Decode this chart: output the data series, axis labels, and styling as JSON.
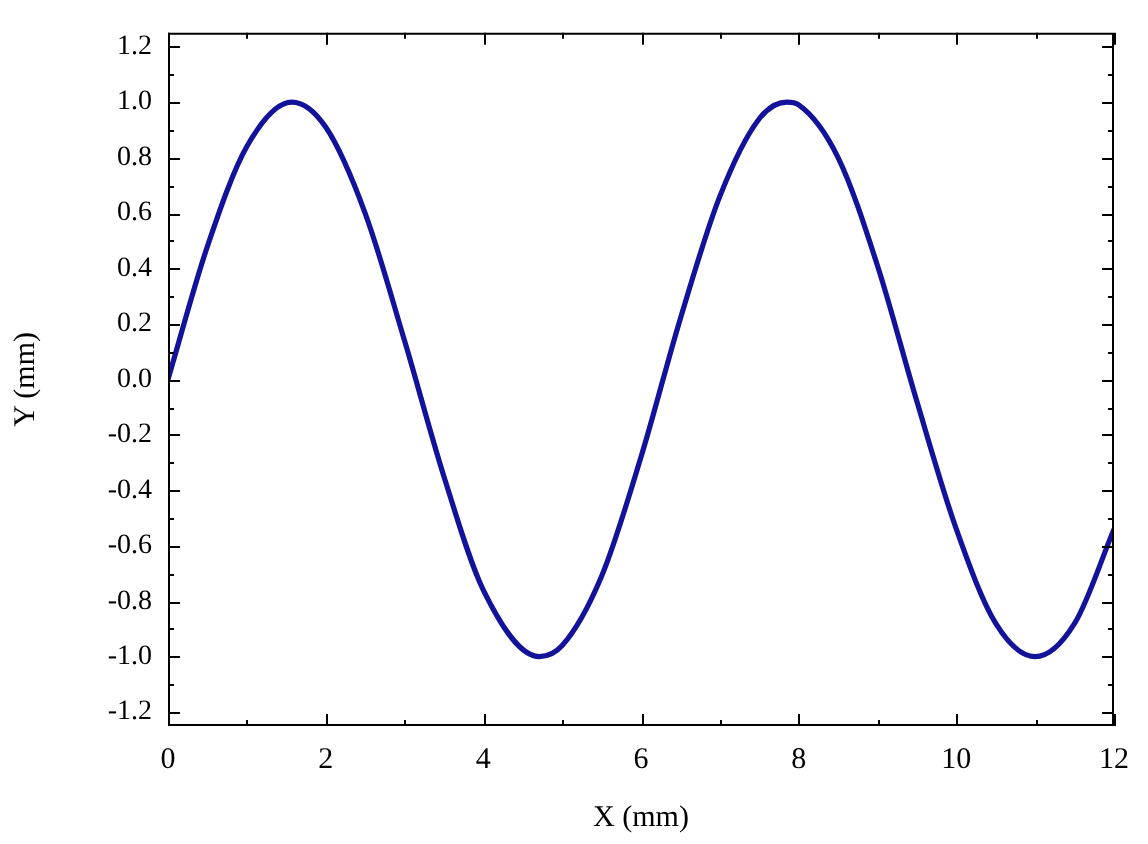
{
  "chart_data": {
    "type": "line",
    "xlabel": "X (mm)",
    "ylabel": "Y (mm)",
    "marker": "none",
    "line_style": "solid",
    "xlim": [
      0,
      12
    ],
    "ylim": [
      -1.25,
      1.25
    ],
    "xticks": [
      0,
      {
        "value": 1,
        "label": null
      },
      2,
      {
        "value": 3,
        "label": null
      },
      4,
      {
        "value": 5,
        "label": null
      },
      6,
      {
        "value": 7,
        "label": null
      },
      8,
      {
        "value": 9,
        "label": null
      },
      10,
      {
        "value": 11,
        "label": null
      },
      12
    ],
    "yticks": [
      {
        "value": -1.2,
        "label": "-1.2"
      },
      {
        "value": -1.1,
        "label": null
      },
      {
        "value": -1.0,
        "label": "-1.0"
      },
      {
        "value": -0.9,
        "label": null
      },
      {
        "value": -0.8,
        "label": "-0.8"
      },
      {
        "value": -0.7,
        "label": null
      },
      {
        "value": -0.6,
        "label": "-0.6"
      },
      {
        "value": -0.5,
        "label": null
      },
      {
        "value": -0.4,
        "label": "-0.4"
      },
      {
        "value": -0.3,
        "label": null
      },
      {
        "value": -0.2,
        "label": "-0.2"
      },
      {
        "value": -0.1,
        "label": null
      },
      {
        "value": 0,
        "label": "0.0"
      },
      {
        "value": 0.1,
        "label": null
      },
      {
        "value": 0.2,
        "label": "0.2"
      },
      {
        "value": 0.3,
        "label": null
      },
      {
        "value": 0.4,
        "label": "0.4"
      },
      {
        "value": 0.5,
        "label": null
      },
      {
        "value": 0.6,
        "label": "0.6"
      },
      {
        "value": 0.7,
        "label": null
      },
      {
        "value": 0.8,
        "label": "0.8"
      },
      {
        "value": 0.9,
        "label": null
      },
      {
        "value": 1.0,
        "label": "1.0"
      },
      {
        "value": 1.1,
        "label": null
      },
      {
        "value": 1.2,
        "label": "1.2"
      }
    ],
    "x": [
      0,
      0.5,
      1,
      1.57,
      2,
      2.5,
      3,
      3.5,
      4,
      4.71,
      5,
      5.5,
      6,
      6.5,
      7,
      7.5,
      7.85,
      8,
      8.5,
      9,
      9.5,
      10,
      10.5,
      11,
      11.5,
      12
    ],
    "series": [
      {
        "color": "#12129a",
        "values": [
          0,
          0.48,
          0.84,
          1.0,
          0.91,
          0.6,
          0.14,
          -0.35,
          -0.76,
          -1.0,
          -0.96,
          -0.71,
          -0.28,
          0.22,
          0.66,
          0.94,
          1.0,
          0.99,
          0.8,
          0.41,
          -0.08,
          -0.54,
          -0.88,
          -1.0,
          -0.88,
          -0.54
        ]
      }
    ]
  }
}
